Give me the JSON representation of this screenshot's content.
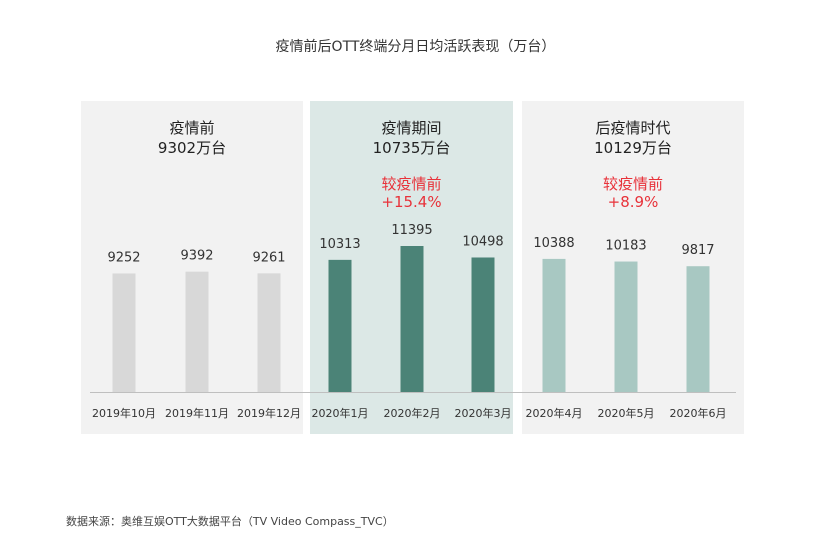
{
  "title": "疫情前后OTT终端分月日均活跃表现（万台）",
  "source": "数据来源：奥维互娱OTT大数据平台（TV Video Compass_TVC）",
  "colors": {
    "pre_bg": "#f2f2f2",
    "during_bg": "#dce8e6",
    "post_bg": "#f2f2f2",
    "pre_bar": "#d8d8d8",
    "during_bar": "#4b8377",
    "post_bar": "#a8c8c2",
    "accent_red": "#e8323a"
  },
  "chart_data": {
    "type": "bar",
    "title": "疫情前后OTT终端分月日均活跃表现（万台）",
    "categories": [
      "2019年10月",
      "2019年11月",
      "2019年12月",
      "2020年1月",
      "2020年2月",
      "2020年3月",
      "2020年4月",
      "2020年5月",
      "2020年6月"
    ],
    "values": [
      9252,
      9392,
      9261,
      10313,
      11395,
      10498,
      10388,
      10183,
      9817
    ],
    "groups": [
      {
        "name": "疫情前",
        "average": "9302万台",
        "change_label": "",
        "change": "",
        "range": [
          0,
          2
        ],
        "style": "pre"
      },
      {
        "name": "疫情期间",
        "average": "10735万台",
        "change_label": "较疫情前",
        "change": "+15.4%",
        "range": [
          3,
          5
        ],
        "style": "during"
      },
      {
        "name": "后疫情时代",
        "average": "10129万台",
        "change_label": "较疫情前",
        "change": "+8.9%",
        "range": [
          6,
          8
        ],
        "style": "post"
      }
    ],
    "ylim": [
      0,
      11395
    ],
    "grid": false,
    "legend": "none"
  }
}
